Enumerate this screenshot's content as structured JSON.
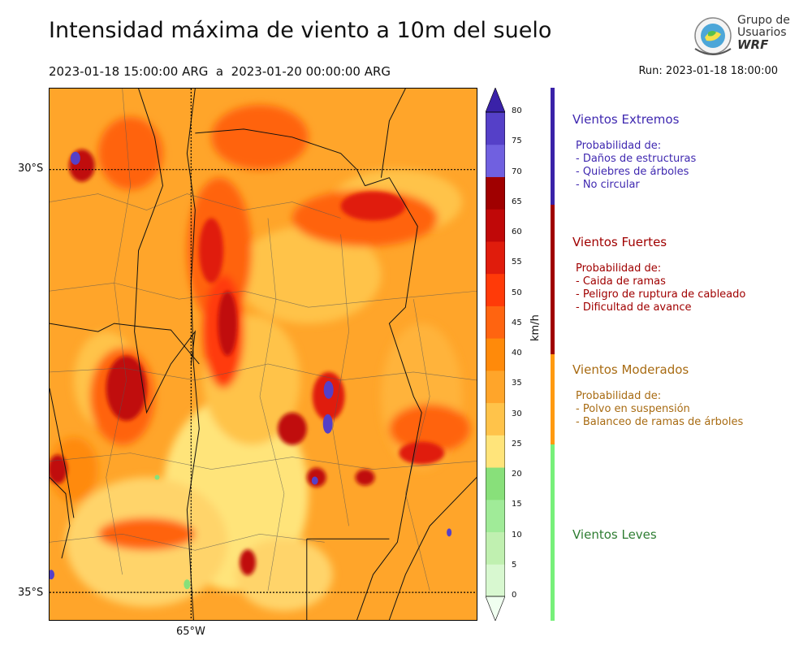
{
  "header": {
    "title": "Intensidad máxima de viento a 10m del suelo",
    "subtitle": "2023-01-18 15:00:00 ARG  a  2023-01-20 00:00:00 ARG",
    "run": "Run: 2023-01-18 18:00:00"
  },
  "logo": {
    "line1": "Grupo de",
    "line2": "Usuarios",
    "line3": "WRF"
  },
  "map": {
    "lat_labels": [
      "30°S",
      "35°S"
    ],
    "lon_labels": [
      "65°W"
    ]
  },
  "colorbar": {
    "unit": "km/h",
    "ticks": [
      "80",
      "75",
      "70",
      "65",
      "60",
      "55",
      "50",
      "45",
      "40",
      "35",
      "30",
      "25",
      "20",
      "15",
      "10",
      "5",
      "0"
    ],
    "levels": [
      0,
      5,
      10,
      15,
      20,
      25,
      30,
      35,
      40,
      45,
      50,
      55,
      60,
      65,
      70,
      75,
      80
    ],
    "colors": [
      "#f0fff0",
      "#d8f8d0",
      "#c0f0b0",
      "#a0eb98",
      "#88e07a",
      "#ffe47a",
      "#ffc34a",
      "#ffa52a",
      "#ff8a0a",
      "#ff6410",
      "#ff3a08",
      "#e01c0c",
      "#c00808",
      "#a00000",
      "#7060e0",
      "#5540c8",
      "#3a22a8"
    ]
  },
  "categories": [
    {
      "title": "Vientos Extremos",
      "color": "#3f28b0",
      "lines": [
        "Probabilidad de:",
        "- Daños de estructuras",
        "- Quiebres de árboles",
        "- No circular"
      ]
    },
    {
      "title": "Vientos Fuertes",
      "color": "#a00000",
      "lines": [
        "Probabilidad de:",
        "- Caida de ramas",
        "- Peligro de ruptura de cableado",
        "- Dificultad de avance"
      ]
    },
    {
      "title": "Vientos Moderados",
      "color": "#a86b12",
      "lines": [
        "Probabilidad de:",
        "- Polvo en suspensión",
        "- Balanceo de ramas de árboles"
      ]
    },
    {
      "title": "Vientos Leves",
      "color": "#2e7d32",
      "lines": []
    }
  ]
}
